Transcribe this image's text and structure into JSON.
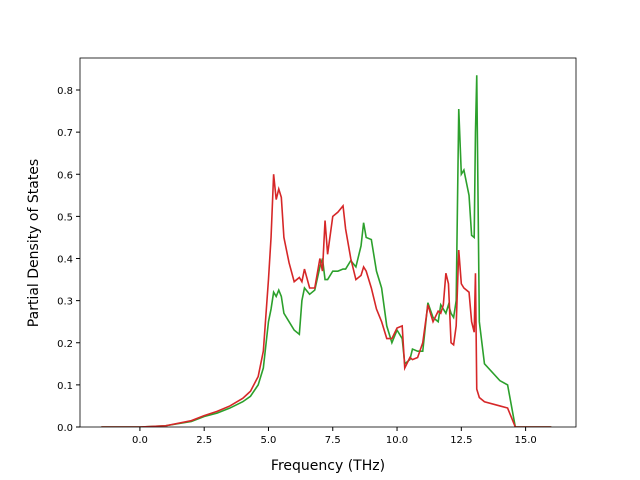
{
  "chart_data": {
    "type": "line",
    "x_label": "Frequency (THz)",
    "y_label": "Partial Density of States",
    "x": [
      -1.5,
      0,
      1.0,
      2.0,
      2.5,
      3.0,
      3.5,
      4.0,
      4.3,
      4.6,
      4.8,
      5.0,
      5.1,
      5.2,
      5.3,
      5.4,
      5.5,
      5.6,
      5.8,
      6.0,
      6.2,
      6.3,
      6.4,
      6.6,
      6.8,
      7.0,
      7.1,
      7.2,
      7.3,
      7.5,
      7.7,
      7.9,
      8.0,
      8.2,
      8.4,
      8.6,
      8.7,
      8.8,
      9.0,
      9.2,
      9.4,
      9.6,
      9.8,
      10.0,
      10.2,
      10.3,
      10.5,
      10.6,
      10.8,
      11.0,
      11.2,
      11.4,
      11.6,
      11.7,
      11.8,
      11.9,
      12.0,
      12.1,
      12.2,
      12.3,
      12.4,
      12.5,
      12.6,
      12.8,
      12.9,
      13.0,
      13.05,
      13.1,
      13.2,
      13.4,
      14.0,
      14.3,
      14.6,
      15.0,
      16.0
    ],
    "series": [
      {
        "name": "green",
        "color": "#2ca02c",
        "values": [
          0,
          0,
          0.003,
          0.013,
          0.025,
          0.033,
          0.045,
          0.06,
          0.073,
          0.1,
          0.14,
          0.25,
          0.28,
          0.32,
          0.31,
          0.325,
          0.31,
          0.27,
          0.25,
          0.23,
          0.22,
          0.3,
          0.33,
          0.315,
          0.325,
          0.38,
          0.4,
          0.35,
          0.35,
          0.37,
          0.37,
          0.375,
          0.375,
          0.395,
          0.38,
          0.43,
          0.485,
          0.45,
          0.445,
          0.37,
          0.33,
          0.24,
          0.2,
          0.23,
          0.21,
          0.15,
          0.16,
          0.185,
          0.18,
          0.18,
          0.295,
          0.26,
          0.25,
          0.29,
          0.28,
          0.27,
          0.29,
          0.27,
          0.26,
          0.3,
          0.755,
          0.6,
          0.61,
          0.55,
          0.455,
          0.45,
          0.7,
          0.835,
          0.25,
          0.15,
          0.11,
          0.1,
          0.0,
          0,
          0
        ]
      },
      {
        "name": "red",
        "color": "#d62728",
        "values": [
          0,
          0,
          0.003,
          0.015,
          0.027,
          0.037,
          0.05,
          0.068,
          0.085,
          0.12,
          0.18,
          0.35,
          0.45,
          0.6,
          0.54,
          0.565,
          0.545,
          0.45,
          0.39,
          0.345,
          0.355,
          0.345,
          0.375,
          0.33,
          0.33,
          0.4,
          0.37,
          0.49,
          0.41,
          0.5,
          0.51,
          0.525,
          0.47,
          0.4,
          0.35,
          0.36,
          0.38,
          0.37,
          0.33,
          0.28,
          0.25,
          0.21,
          0.21,
          0.235,
          0.24,
          0.14,
          0.165,
          0.16,
          0.165,
          0.2,
          0.29,
          0.25,
          0.275,
          0.27,
          0.29,
          0.365,
          0.34,
          0.2,
          0.195,
          0.24,
          0.42,
          0.34,
          0.33,
          0.32,
          0.25,
          0.225,
          0.365,
          0.09,
          0.07,
          0.06,
          0.05,
          0.045,
          0.0,
          0,
          0
        ]
      }
    ],
    "xlim": [
      -2.33,
      16.96
    ],
    "ylim": [
      0,
      0.876
    ],
    "xticks": [
      {
        "value": 0,
        "label": "0.0"
      },
      2.5,
      {
        "value": 5,
        "label": "5.0"
      },
      7.5,
      {
        "value": 10,
        "label": "10.0"
      },
      12.5,
      {
        "value": 15,
        "label": "15.0"
      }
    ],
    "yticks": [
      {
        "value": 0,
        "label": "0.0"
      },
      0.1,
      0.2,
      0.3,
      0.4,
      0.5,
      0.6,
      0.7,
      0.8
    ],
    "grid": false
  }
}
